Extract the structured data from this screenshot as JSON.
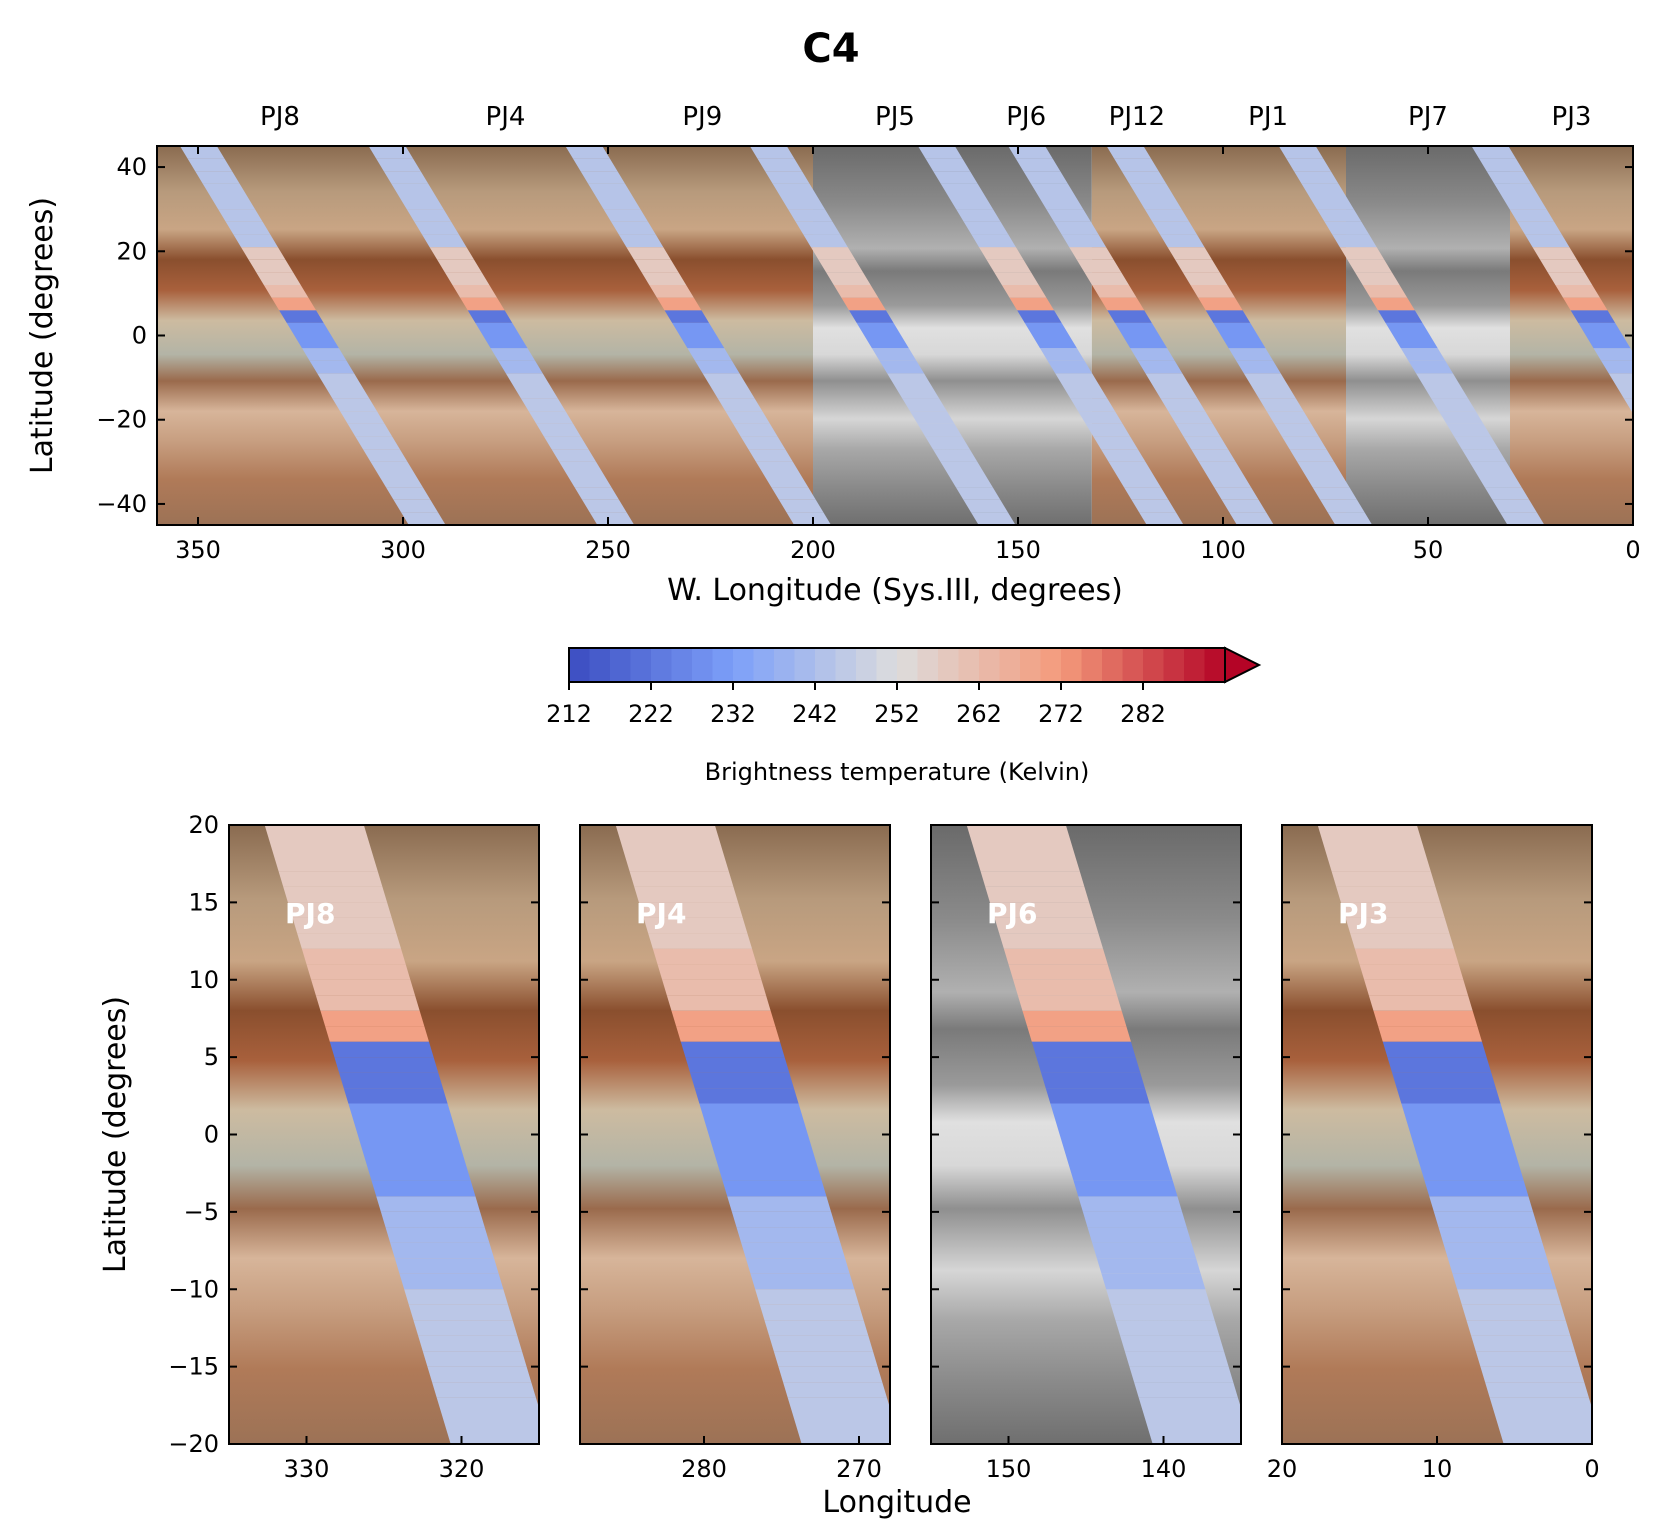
{
  "colors": {
    "cold": "#3b4cc0",
    "mid": "#dddddd",
    "hot": "#b40426",
    "tan": "#b8926a",
    "brown": "#8a4f2e",
    "cream": "#d9c7a8",
    "gray_band": "#9a9a9a"
  },
  "chart_data": [
    {
      "type": "heatmap",
      "title": "C4",
      "xlabel": "W. Longitude (Sys.III, degrees)",
      "ylabel": "Latitude (degrees)",
      "xlim": [
        360,
        0
      ],
      "ylim": [
        -45,
        45
      ],
      "xticks": [
        "350",
        "300",
        "250",
        "200",
        "150",
        "100",
        "50",
        "0"
      ],
      "xtick_values": [
        350,
        300,
        250,
        200,
        150,
        100,
        50,
        0
      ],
      "yticks": [
        "40",
        "20",
        "0",
        "−20",
        "−40"
      ],
      "ytick_values": [
        40,
        20,
        0,
        -20,
        -40
      ],
      "perijoves": [
        {
          "label": "PJ8",
          "lon_start": 360,
          "lon_end": 300,
          "label_lon": 330,
          "style": "color",
          "swath_lon_at_eq": 322
        },
        {
          "label": "PJ4",
          "lon_start": 300,
          "lon_end": 250,
          "label_lon": 275,
          "style": "color",
          "swath_lon_at_eq": 276
        },
        {
          "label": "PJ9",
          "lon_start": 250,
          "lon_end": 200,
          "label_lon": 227,
          "style": "color",
          "swath_lon_at_eq": 228
        },
        {
          "label": "PJ5",
          "lon_start": 200,
          "lon_end": 160,
          "label_lon": 180,
          "style": "gray",
          "swath_lon_at_eq": 183
        },
        {
          "label": "PJ6",
          "lon_start": 160,
          "lon_end": 132,
          "label_lon": 148,
          "style": "gray",
          "swath_lon_at_eq": 142
        },
        {
          "label": "PJ12",
          "lon_start": 132,
          "lon_end": 110,
          "label_lon": 121,
          "style": "color",
          "swath_lon_at_eq": 120
        },
        {
          "label": "PJ1",
          "lon_start": 110,
          "lon_end": 70,
          "label_lon": 89,
          "style": "color",
          "swath_lon_at_eq": 96
        },
        {
          "label": "PJ7",
          "lon_start": 70,
          "lon_end": 30,
          "label_lon": 50,
          "style": "gray",
          "swath_lon_at_eq": 54
        },
        {
          "label": "PJ3",
          "lon_start": 30,
          "lon_end": 0,
          "label_lon": 15,
          "style": "color",
          "swath_lon_at_eq": 7
        }
      ]
    },
    {
      "type": "heatmap",
      "name": "colorbar",
      "label": "Brightness temperature (Kelvin)",
      "range": [
        212,
        292
      ],
      "ticks": [
        "212",
        "222",
        "232",
        "242",
        "252",
        "262",
        "272",
        "282"
      ],
      "tick_values": [
        212,
        222,
        232,
        242,
        252,
        262,
        272,
        282
      ],
      "extend": "max"
    },
    {
      "type": "heatmap",
      "xlabel": "Longitude",
      "ylabel": "Latitude (degrees)",
      "ylim": [
        -20,
        20
      ],
      "yticks": [
        "20",
        "15",
        "10",
        "5",
        "0",
        "−5",
        "−10",
        "−15",
        "−20"
      ],
      "ytick_values": [
        20,
        15,
        10,
        5,
        0,
        -5,
        -10,
        -15,
        -20
      ],
      "panels": [
        {
          "label": "PJ8",
          "xlim": [
            335,
            315
          ],
          "xticks": [
            "330",
            "320"
          ],
          "xtick_values": [
            330,
            320
          ],
          "style": "color"
        },
        {
          "label": "PJ4",
          "xlim": [
            288,
            268
          ],
          "xticks": [
            "280",
            "270"
          ],
          "xtick_values": [
            280,
            270
          ],
          "style": "color"
        },
        {
          "label": "PJ6",
          "xlim": [
            155,
            135
          ],
          "xticks": [
            "150",
            "140"
          ],
          "xtick_values": [
            150,
            140
          ],
          "style": "gray"
        },
        {
          "label": "PJ3",
          "xlim": [
            20,
            0
          ],
          "xticks": [
            "20",
            "10",
            "0"
          ],
          "xtick_values": [
            20,
            10,
            0
          ],
          "style": "color"
        }
      ]
    }
  ]
}
